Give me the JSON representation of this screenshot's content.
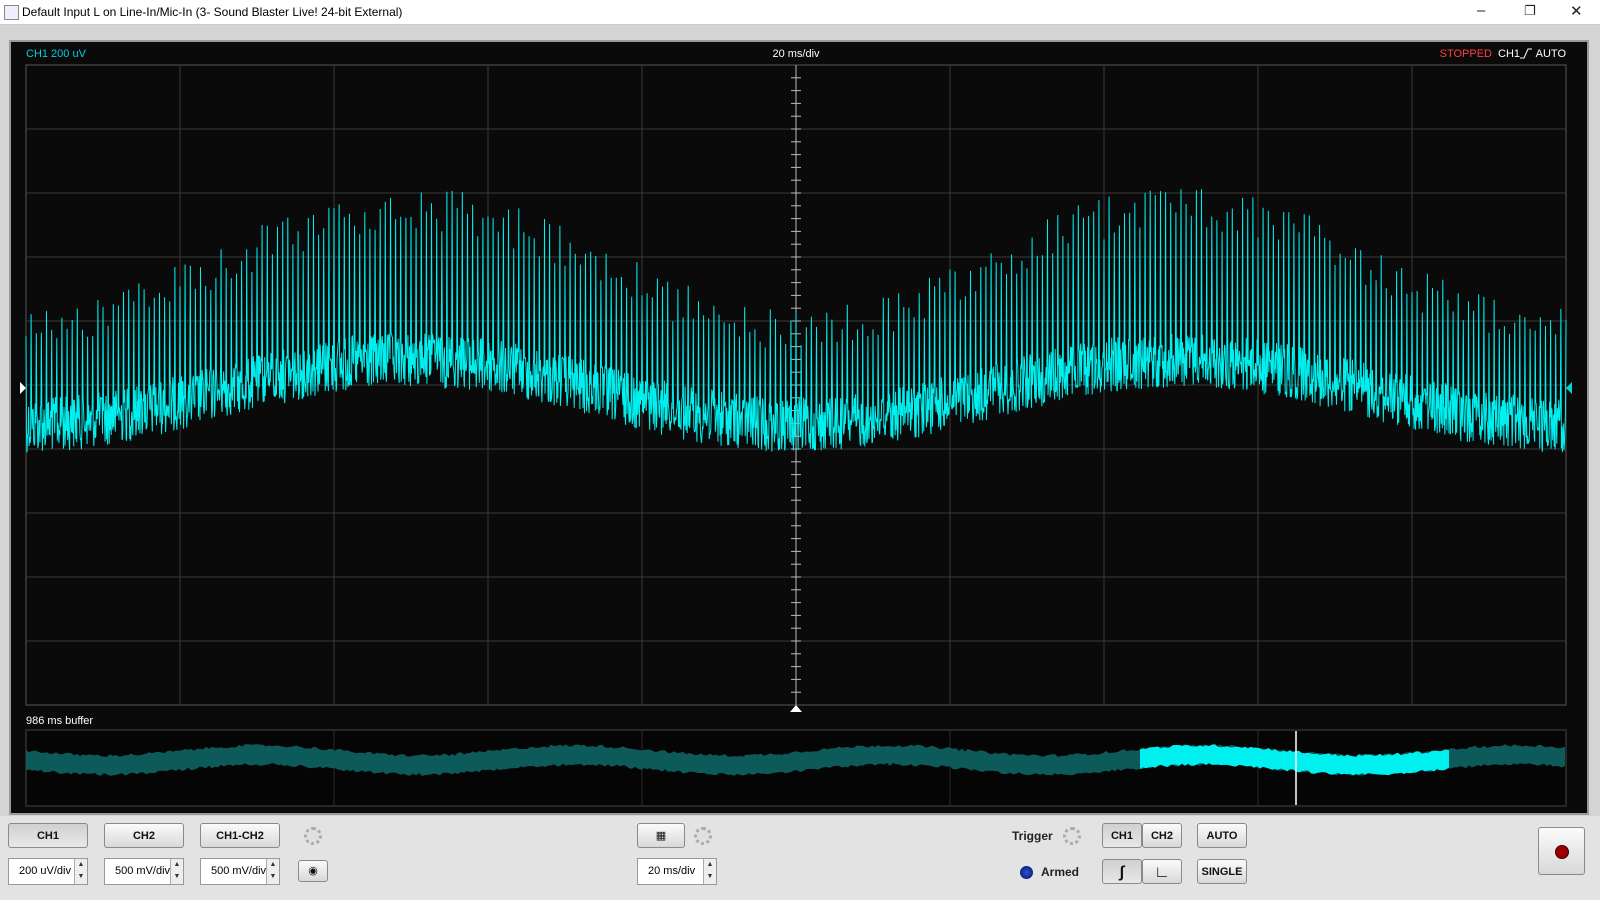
{
  "window": {
    "title": "Default Input L on Line-In/Mic-In (3- Sound Blaster Live! 24-bit External)"
  },
  "scope": {
    "channel_scale": "CH1 200 uV",
    "timebase": "20 ms/div",
    "status": "STOPPED",
    "trigger_channel": "CH1",
    "trigger_mode": "AUTO",
    "buffer_label": "986 ms buffer"
  },
  "controls": {
    "channel_buttons": [
      "CH1",
      "CH2",
      "CH1-CH2"
    ],
    "channel_scales": [
      "200 uV/div",
      "500 mV/div",
      "500 mV/div"
    ],
    "timebase": "20 ms/div",
    "trigger_label": "Trigger",
    "trigger_state": "Armed",
    "trigger_channels": [
      "CH1",
      "CH2"
    ],
    "mode_buttons": [
      "AUTO",
      "SINGLE"
    ]
  }
}
